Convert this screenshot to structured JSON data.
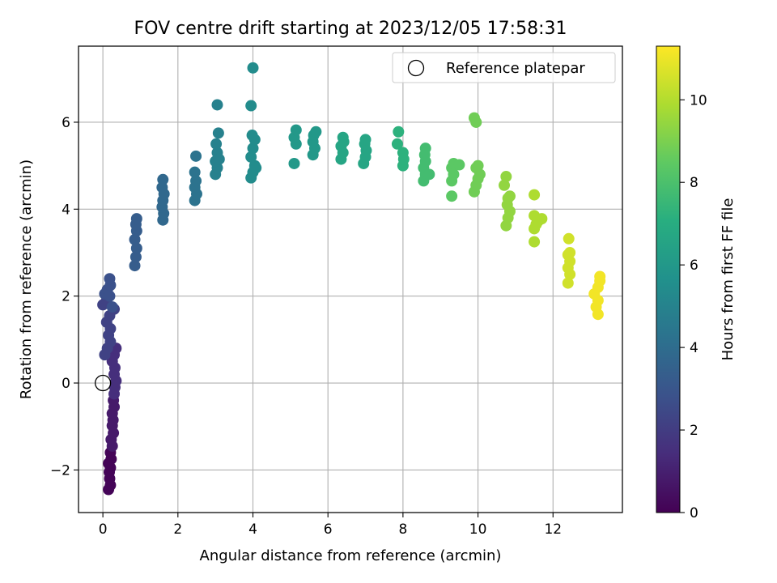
{
  "chart_data": {
    "type": "scatter",
    "title": "FOV centre drift starting at 2023/12/05 17:58:31",
    "xlabel": "Angular distance from reference (arcmin)",
    "ylabel": "Rotation from reference (arcmin)",
    "xlim": [
      -0.65,
      13.85
    ],
    "ylim": [
      -2.98,
      7.75
    ],
    "xticks": [
      0,
      2,
      4,
      6,
      8,
      10,
      12
    ],
    "yticks": [
      -2,
      0,
      2,
      4,
      6
    ],
    "ytick_labels": [
      "−2",
      "0",
      "2",
      "4",
      "6"
    ],
    "grid": true,
    "legend": {
      "placement": "top-right",
      "entries": [
        {
          "label": "Reference platepar",
          "marker": "open-circle"
        }
      ]
    },
    "reference_point": {
      "x": 0,
      "y": 0
    },
    "colorbar": {
      "label": "Hours from first FF file",
      "colormap": "viridis",
      "range": [
        0,
        11.3
      ],
      "ticks": [
        0,
        2,
        4,
        6,
        8,
        10
      ]
    },
    "series": [
      {
        "color_value": 0.1,
        "points": [
          [
            0.15,
            -2.45
          ],
          [
            0.2,
            -2.35
          ],
          [
            0.18,
            -2.2
          ],
          [
            0.17,
            -2.05
          ],
          [
            0.2,
            -1.95
          ],
          [
            0.15,
            -1.85
          ],
          [
            0.22,
            -1.75
          ],
          [
            0.2,
            -1.6
          ]
        ]
      },
      {
        "color_value": 0.8,
        "points": [
          [
            0.25,
            -1.45
          ],
          [
            0.22,
            -1.3
          ],
          [
            0.28,
            -1.15
          ],
          [
            0.25,
            -0.98
          ],
          [
            0.27,
            -0.85
          ],
          [
            0.25,
            -0.7
          ],
          [
            0.3,
            -0.55
          ],
          [
            0.28,
            -0.4
          ]
        ]
      },
      {
        "color_value": 1.5,
        "points": [
          [
            0.3,
            -0.25
          ],
          [
            0.32,
            -0.1
          ],
          [
            0.35,
            0.05
          ],
          [
            0.3,
            0.2
          ],
          [
            0.32,
            0.35
          ],
          [
            0.25,
            0.5
          ],
          [
            0.3,
            0.65
          ],
          [
            0.35,
            0.8
          ]
        ]
      },
      {
        "color_value": 2.2,
        "points": [
          [
            0.05,
            0.65
          ],
          [
            0.12,
            0.8
          ],
          [
            0.2,
            0.95
          ],
          [
            0.15,
            1.1
          ],
          [
            0.2,
            1.25
          ],
          [
            0.1,
            1.4
          ],
          [
            0.18,
            1.55
          ],
          [
            0.3,
            1.7
          ],
          [
            0.0,
            1.8
          ],
          [
            0.1,
            1.9
          ]
        ]
      },
      {
        "color_value": 2.8,
        "points": [
          [
            0.05,
            2.05
          ],
          [
            0.12,
            2.15
          ],
          [
            0.18,
            2.0
          ],
          [
            0.2,
            2.25
          ],
          [
            0.18,
            2.4
          ],
          [
            0.25,
            1.75
          ]
        ]
      },
      {
        "color_value": 3.3,
        "points": [
          [
            0.85,
            2.7
          ],
          [
            0.88,
            2.9
          ],
          [
            0.9,
            3.1
          ],
          [
            0.85,
            3.3
          ],
          [
            0.9,
            3.5
          ],
          [
            0.88,
            3.65
          ],
          [
            0.9,
            3.78
          ]
        ]
      },
      {
        "color_value": 3.8,
        "points": [
          [
            1.6,
            3.75
          ],
          [
            1.62,
            3.9
          ],
          [
            1.58,
            4.05
          ],
          [
            1.6,
            4.2
          ],
          [
            1.63,
            4.35
          ],
          [
            1.58,
            4.5
          ],
          [
            1.6,
            4.68
          ]
        ]
      },
      {
        "color_value": 4.3,
        "points": [
          [
            2.45,
            4.2
          ],
          [
            2.5,
            4.35
          ],
          [
            2.45,
            4.5
          ],
          [
            2.48,
            4.65
          ],
          [
            2.45,
            4.85
          ],
          [
            2.48,
            5.22
          ]
        ]
      },
      {
        "color_value": 4.9,
        "points": [
          [
            3.0,
            4.8
          ],
          [
            3.05,
            4.95
          ],
          [
            3.0,
            5.1
          ],
          [
            3.05,
            5.3
          ],
          [
            3.02,
            5.5
          ],
          [
            3.08,
            5.75
          ],
          [
            3.05,
            6.4
          ],
          [
            3.1,
            5.15
          ]
        ]
      },
      {
        "color_value": 5.4,
        "points": [
          [
            3.95,
            4.72
          ],
          [
            4.0,
            4.85
          ],
          [
            4.05,
            5.0
          ],
          [
            3.95,
            5.2
          ],
          [
            4.0,
            5.4
          ],
          [
            4.05,
            5.6
          ],
          [
            3.98,
            5.7
          ],
          [
            3.95,
            6.38
          ],
          [
            4.0,
            7.25
          ],
          [
            4.08,
            4.95
          ]
        ]
      },
      {
        "color_value": 6.0,
        "points": [
          [
            5.1,
            5.05
          ],
          [
            5.15,
            5.5
          ],
          [
            5.1,
            5.65
          ],
          [
            5.15,
            5.82
          ],
          [
            5.6,
            5.25
          ],
          [
            5.65,
            5.4
          ],
          [
            5.6,
            5.55
          ],
          [
            5.62,
            5.7
          ],
          [
            5.68,
            5.78
          ]
        ]
      },
      {
        "color_value": 6.6,
        "points": [
          [
            6.35,
            5.15
          ],
          [
            6.4,
            5.3
          ],
          [
            6.35,
            5.45
          ],
          [
            6.42,
            5.55
          ],
          [
            6.4,
            5.65
          ],
          [
            6.95,
            5.05
          ],
          [
            7.0,
            5.2
          ],
          [
            7.02,
            5.35
          ],
          [
            6.98,
            5.5
          ],
          [
            7.0,
            5.6
          ]
        ]
      },
      {
        "color_value": 7.2,
        "points": [
          [
            7.85,
            5.5
          ],
          [
            7.88,
            5.78
          ],
          [
            8.0,
            5.3
          ],
          [
            8.0,
            5.0
          ],
          [
            8.02,
            5.15
          ]
        ]
      },
      {
        "color_value": 7.8,
        "points": [
          [
            8.55,
            4.65
          ],
          [
            8.6,
            4.8
          ],
          [
            8.55,
            4.95
          ],
          [
            8.6,
            5.1
          ],
          [
            8.58,
            5.25
          ],
          [
            8.6,
            5.4
          ],
          [
            8.7,
            4.8
          ]
        ]
      },
      {
        "color_value": 8.4,
        "points": [
          [
            9.3,
            4.3
          ],
          [
            9.3,
            4.65
          ],
          [
            9.35,
            4.8
          ],
          [
            9.3,
            4.95
          ],
          [
            9.35,
            5.05
          ],
          [
            9.5,
            5.02
          ]
        ]
      },
      {
        "color_value": 8.8,
        "points": [
          [
            9.9,
            4.4
          ],
          [
            9.95,
            4.55
          ],
          [
            10.0,
            4.7
          ],
          [
            10.05,
            4.8
          ],
          [
            9.95,
            4.95
          ],
          [
            10.0,
            5.0
          ],
          [
            9.9,
            6.1
          ],
          [
            9.95,
            6.0
          ]
        ]
      },
      {
        "color_value": 9.4,
        "points": [
          [
            10.75,
            3.62
          ],
          [
            10.8,
            3.8
          ],
          [
            10.85,
            3.95
          ],
          [
            10.78,
            4.1
          ],
          [
            10.8,
            4.25
          ],
          [
            10.85,
            4.3
          ],
          [
            10.7,
            4.55
          ],
          [
            10.75,
            4.75
          ]
        ]
      },
      {
        "color_value": 9.9,
        "points": [
          [
            11.5,
            3.25
          ],
          [
            11.5,
            3.55
          ],
          [
            11.55,
            3.65
          ],
          [
            11.6,
            3.72
          ],
          [
            11.7,
            3.78
          ],
          [
            11.5,
            3.85
          ],
          [
            11.5,
            4.33
          ]
        ]
      },
      {
        "color_value": 10.5,
        "points": [
          [
            12.4,
            2.3
          ],
          [
            12.45,
            2.5
          ],
          [
            12.4,
            2.65
          ],
          [
            12.45,
            2.8
          ],
          [
            12.4,
            2.95
          ],
          [
            12.45,
            3.0
          ],
          [
            12.42,
            3.32
          ]
        ]
      },
      {
        "color_value": 11.1,
        "points": [
          [
            13.2,
            1.58
          ],
          [
            13.15,
            1.75
          ],
          [
            13.2,
            1.9
          ],
          [
            13.1,
            2.05
          ],
          [
            13.2,
            2.2
          ],
          [
            13.25,
            2.35
          ],
          [
            13.25,
            2.45
          ]
        ]
      }
    ]
  }
}
